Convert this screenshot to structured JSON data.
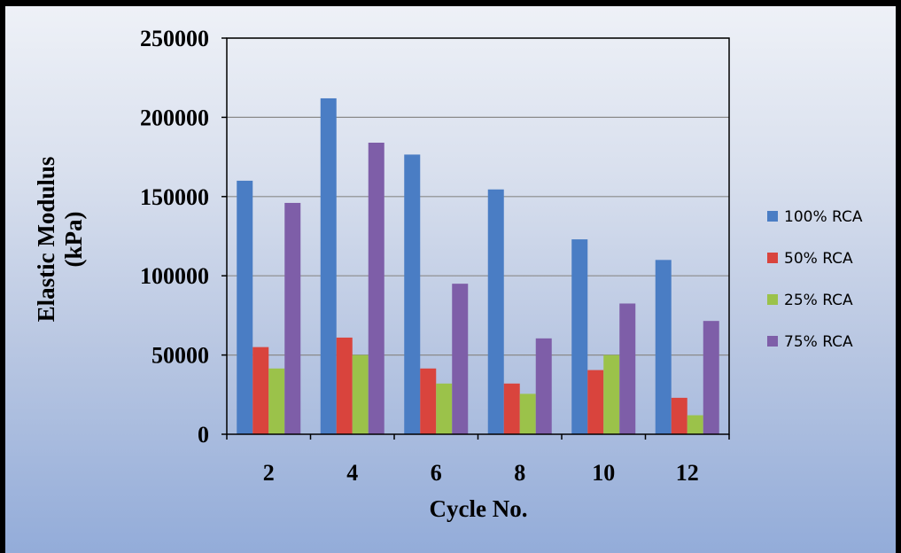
{
  "colors": {
    "series": [
      "#4a7dc4",
      "#d9443d",
      "#9bc24a",
      "#7e5ea8"
    ],
    "grid": "#8a8a8a",
    "axis": "#000000"
  },
  "chart_data": {
    "type": "bar",
    "title": "",
    "xlabel": "Cycle No.",
    "ylabel": "Elastic Modulus (kPa)",
    "ylabel_lines": [
      "Elastic Modulus",
      "(kPa)"
    ],
    "categories": [
      "2",
      "4",
      "6",
      "8",
      "10",
      "12"
    ],
    "ylim": [
      0,
      250000
    ],
    "yticks": [
      "0",
      "50000",
      "100000",
      "150000",
      "200000",
      "250000"
    ],
    "grid": true,
    "legend_position": "right",
    "series": [
      {
        "name": "100% RCA",
        "values": [
          160000,
          212000,
          176500,
          154500,
          123000,
          110000
        ]
      },
      {
        "name": "50% RCA",
        "values": [
          55000,
          61000,
          41500,
          32000,
          40500,
          23000
        ]
      },
      {
        "name": "25% RCA",
        "values": [
          41500,
          50000,
          32000,
          25500,
          50000,
          12000
        ]
      },
      {
        "name": "75% RCA",
        "values": [
          146000,
          184000,
          95000,
          60500,
          82500,
          71500
        ]
      }
    ]
  }
}
